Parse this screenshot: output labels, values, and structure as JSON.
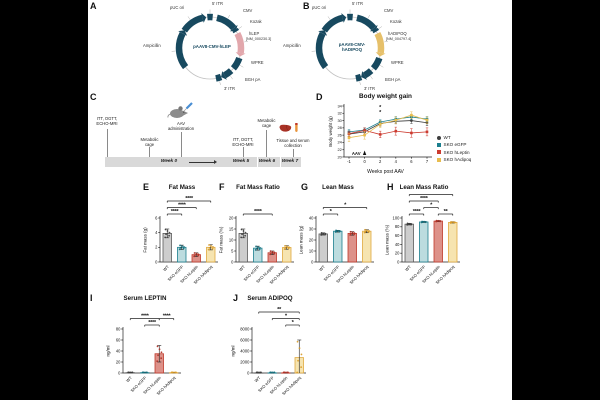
{
  "groups": [
    {
      "name": "WT",
      "edge": "#5a5a5a",
      "fill": "#cdcdcd",
      "dot": "#3d3d3d"
    },
    {
      "name": "SKO eGFP",
      "edge": "#1b7f8e",
      "fill": "#bcdcdf",
      "dot": "#14707e"
    },
    {
      "name": "SKO hLeptin",
      "edge": "#c0392b",
      "fill": "#dd9189",
      "dot": "#b03025"
    },
    {
      "name": "SKO hAdipoq",
      "edge": "#e0a93e",
      "fill": "#f6e4b0",
      "dot": "#d99b27"
    }
  ],
  "panels": {
    "A": {
      "letter": "A",
      "plasmid": {
        "name": "pAAV8-CMV-hLEP",
        "puc": "pUC ori",
        "itr5": "5' ITR",
        "cmv": "CMV",
        "kozak": "Kozak",
        "gene": "hLEP",
        "accession": "[NM_000230.3]",
        "wpre": "WPRE",
        "bgh": "BGH pA",
        "itr3": "3' ITR",
        "amp": "Ampicillin",
        "gene_color": "#e2a7ac",
        "backbone_color": "#17495f"
      }
    },
    "B": {
      "letter": "B",
      "plasmid": {
        "name": "pAAV8-CMV-\nhADIPOQ",
        "puc": "pUC ori",
        "itr5": "5' ITR",
        "cmv": "CMV",
        "kozak": "Kozak",
        "gene": "hADIPOQ",
        "accession": "[NM_004797.4]",
        "wpre": "WPRE",
        "bgh": "BGH pA",
        "itr3": "3' ITR",
        "amp": "Ampicillin",
        "gene_color": "#e6c06a",
        "backbone_color": "#17495f"
      }
    },
    "C": {
      "letter": "C",
      "timeline": {
        "events": [
          "ITT, OGTT,\nECHO-MRI",
          "Metabolic\ncage",
          "AAV\nadministration",
          "ITT, OGTT,\nECHO-MRI",
          "Metabolic\ncage",
          "Tissue and serum\ncollection"
        ],
        "weeks": [
          "Week 0",
          "Week 5",
          "Week 6",
          "Week 7"
        ]
      }
    },
    "D": {
      "letter": "D"
    },
    "E": {
      "letter": "E"
    },
    "F": {
      "letter": "F"
    },
    "G": {
      "letter": "G"
    },
    "H": {
      "letter": "H"
    },
    "I": {
      "letter": "I"
    },
    "J": {
      "letter": "J"
    }
  },
  "chart_data": [
    {
      "id": "D",
      "type": "line",
      "title": "Body weight gain",
      "xlabel": "Weeks post AAV",
      "ylabel": "Body weight (g)",
      "x": [
        -1,
        0,
        2,
        4,
        6,
        7
      ],
      "ylim": [
        20,
        34
      ],
      "yticks": [
        20,
        22,
        24,
        26,
        28,
        30,
        32,
        34
      ],
      "legend_position": "right",
      "series": [
        {
          "name": "WT",
          "color": "#3d3d3d",
          "values": [
            26.3,
            26.9,
            29.2,
            29.8,
            30.0,
            29.4
          ],
          "errors": [
            0.7,
            0.7,
            0.7,
            0.7,
            0.8,
            0.8
          ]
        },
        {
          "name": "SKO eGFP",
          "color": "#1b7f8e",
          "values": [
            26.9,
            27.4,
            29.6,
            30.4,
            31.0,
            30.4
          ],
          "errors": [
            0.6,
            0.6,
            0.6,
            0.7,
            0.7,
            0.7
          ]
        },
        {
          "name": "SKO hLeptin",
          "color": "#cc3b30",
          "values": [
            26.4,
            27.3,
            26.2,
            27.1,
            26.6,
            26.9
          ],
          "errors": [
            0.7,
            0.7,
            0.9,
            1.1,
            1.2,
            1.1
          ]
        },
        {
          "name": "SKO hAdipoq",
          "color": "#e8bd4f",
          "values": [
            25.3,
            26.0,
            29.0,
            30.1,
            31.5,
            30.1
          ],
          "errors": [
            1.1,
            1.1,
            0.9,
            0.9,
            0.9,
            0.9
          ]
        }
      ],
      "annotations": {
        "week2_stars": [
          "*",
          "*"
        ],
        "aav_label": "AAV"
      }
    },
    {
      "id": "E",
      "type": "bar",
      "title": "Fat Mass",
      "ylabel": "Fat mass (g)",
      "categories": [
        "WT",
        "SKO eGFP",
        "SKO hLeptin",
        "SKO hAdipoq"
      ],
      "values": [
        3.9,
        2.0,
        1.0,
        2.0
      ],
      "errors": [
        0.6,
        0.3,
        0.25,
        0.35
      ],
      "ylim": [
        0,
        6
      ],
      "yticks": [
        0,
        2,
        4,
        6
      ],
      "sig": [
        {
          "from": 0,
          "to": 1,
          "label": "****",
          "level": 0
        },
        {
          "from": 0,
          "to": 2,
          "label": "****",
          "level": 1
        },
        {
          "from": 0,
          "to": 3,
          "label": "****",
          "level": 2
        }
      ]
    },
    {
      "id": "F",
      "type": "bar",
      "title": "Fat Mass Ratio",
      "ylabel": "Fat mass (%)",
      "categories": [
        "WT",
        "SKO eGFP",
        "SKO hLeptin",
        "SKO hAdipoq"
      ],
      "values": [
        13,
        6.3,
        4.2,
        6.6
      ],
      "errors": [
        2.0,
        0.9,
        0.8,
        0.8
      ],
      "ylim": [
        0,
        20
      ],
      "yticks": [
        0,
        5,
        10,
        15,
        20
      ],
      "sig": [
        {
          "from": 0,
          "to": 2,
          "label": "****",
          "level": 0
        }
      ]
    },
    {
      "id": "G",
      "type": "bar",
      "title": "Lean Mass",
      "ylabel": "Lean mass (g)",
      "categories": [
        "WT",
        "SKO eGFP",
        "SKO hLeptin",
        "SKO hAdipoq"
      ],
      "values": [
        25.5,
        28,
        26,
        28
      ],
      "errors": [
        1.0,
        0.8,
        1.6,
        1.4
      ],
      "ylim": [
        0,
        40
      ],
      "yticks": [
        0,
        10,
        20,
        30,
        40
      ],
      "sig": [
        {
          "from": 0,
          "to": 1,
          "label": "*",
          "level": 0
        },
        {
          "from": 0,
          "to": 3,
          "label": "*",
          "level": 1
        }
      ]
    },
    {
      "id": "H",
      "type": "bar",
      "title": "Lean Mass Ratio",
      "ylabel": "Lean mass (%)",
      "categories": [
        "WT",
        "SKO eGFP",
        "SKO hLeptin",
        "SKO hAdipoq"
      ],
      "values": [
        86,
        91,
        93,
        90
      ],
      "errors": [
        1.8,
        1.2,
        1.2,
        1.4
      ],
      "ylim": [
        0,
        100
      ],
      "yticks": [
        0,
        20,
        40,
        60,
        80,
        100
      ],
      "sig": [
        {
          "from": 0,
          "to": 1,
          "label": "****",
          "level": 0
        },
        {
          "from": 2,
          "to": 3,
          "label": "**",
          "level": 0
        },
        {
          "from": 1,
          "to": 2,
          "label": "*",
          "level": 1
        },
        {
          "from": 0,
          "to": 2,
          "label": "****",
          "level": 2
        },
        {
          "from": 0,
          "to": 3,
          "label": "***",
          "level": 3
        }
      ]
    },
    {
      "id": "I",
      "type": "bar",
      "title": "Serum LEPTIN",
      "ylabel": "ng/ml",
      "categories": [
        "WT",
        "SKO eGFP",
        "SKO hLeptin",
        "SKO hAdipoq"
      ],
      "values": [
        0.6,
        0.6,
        35,
        0.6
      ],
      "errors": [
        0.3,
        0.3,
        15,
        0.3
      ],
      "ylim": [
        0,
        80
      ],
      "yticks": [
        0,
        20,
        40,
        60,
        80
      ],
      "sig": [
        {
          "from": 1,
          "to": 2,
          "label": "****",
          "level": 0
        },
        {
          "from": 0,
          "to": 2,
          "label": "****",
          "level": 1
        },
        {
          "from": 2,
          "to": 3,
          "label": "****",
          "level": 1
        }
      ]
    },
    {
      "id": "J",
      "type": "bar",
      "title": "Serum ADIPOQ",
      "ylabel": "ng/ml",
      "categories": [
        "WT",
        "SKO eGFP",
        "SKO hLeptin",
        "SKO hAdipoq"
      ],
      "values": [
        25,
        25,
        25,
        2800
      ],
      "errors": [
        10,
        10,
        10,
        3200
      ],
      "ylim": [
        0,
        8000
      ],
      "yticks": [
        0,
        2000,
        4000,
        6000,
        8000
      ],
      "sig": [
        {
          "from": 2,
          "to": 3,
          "label": "*",
          "level": 0
        },
        {
          "from": 1,
          "to": 3,
          "label": "*",
          "level": 1
        },
        {
          "from": 0,
          "to": 3,
          "label": "**",
          "level": 2
        }
      ]
    }
  ]
}
